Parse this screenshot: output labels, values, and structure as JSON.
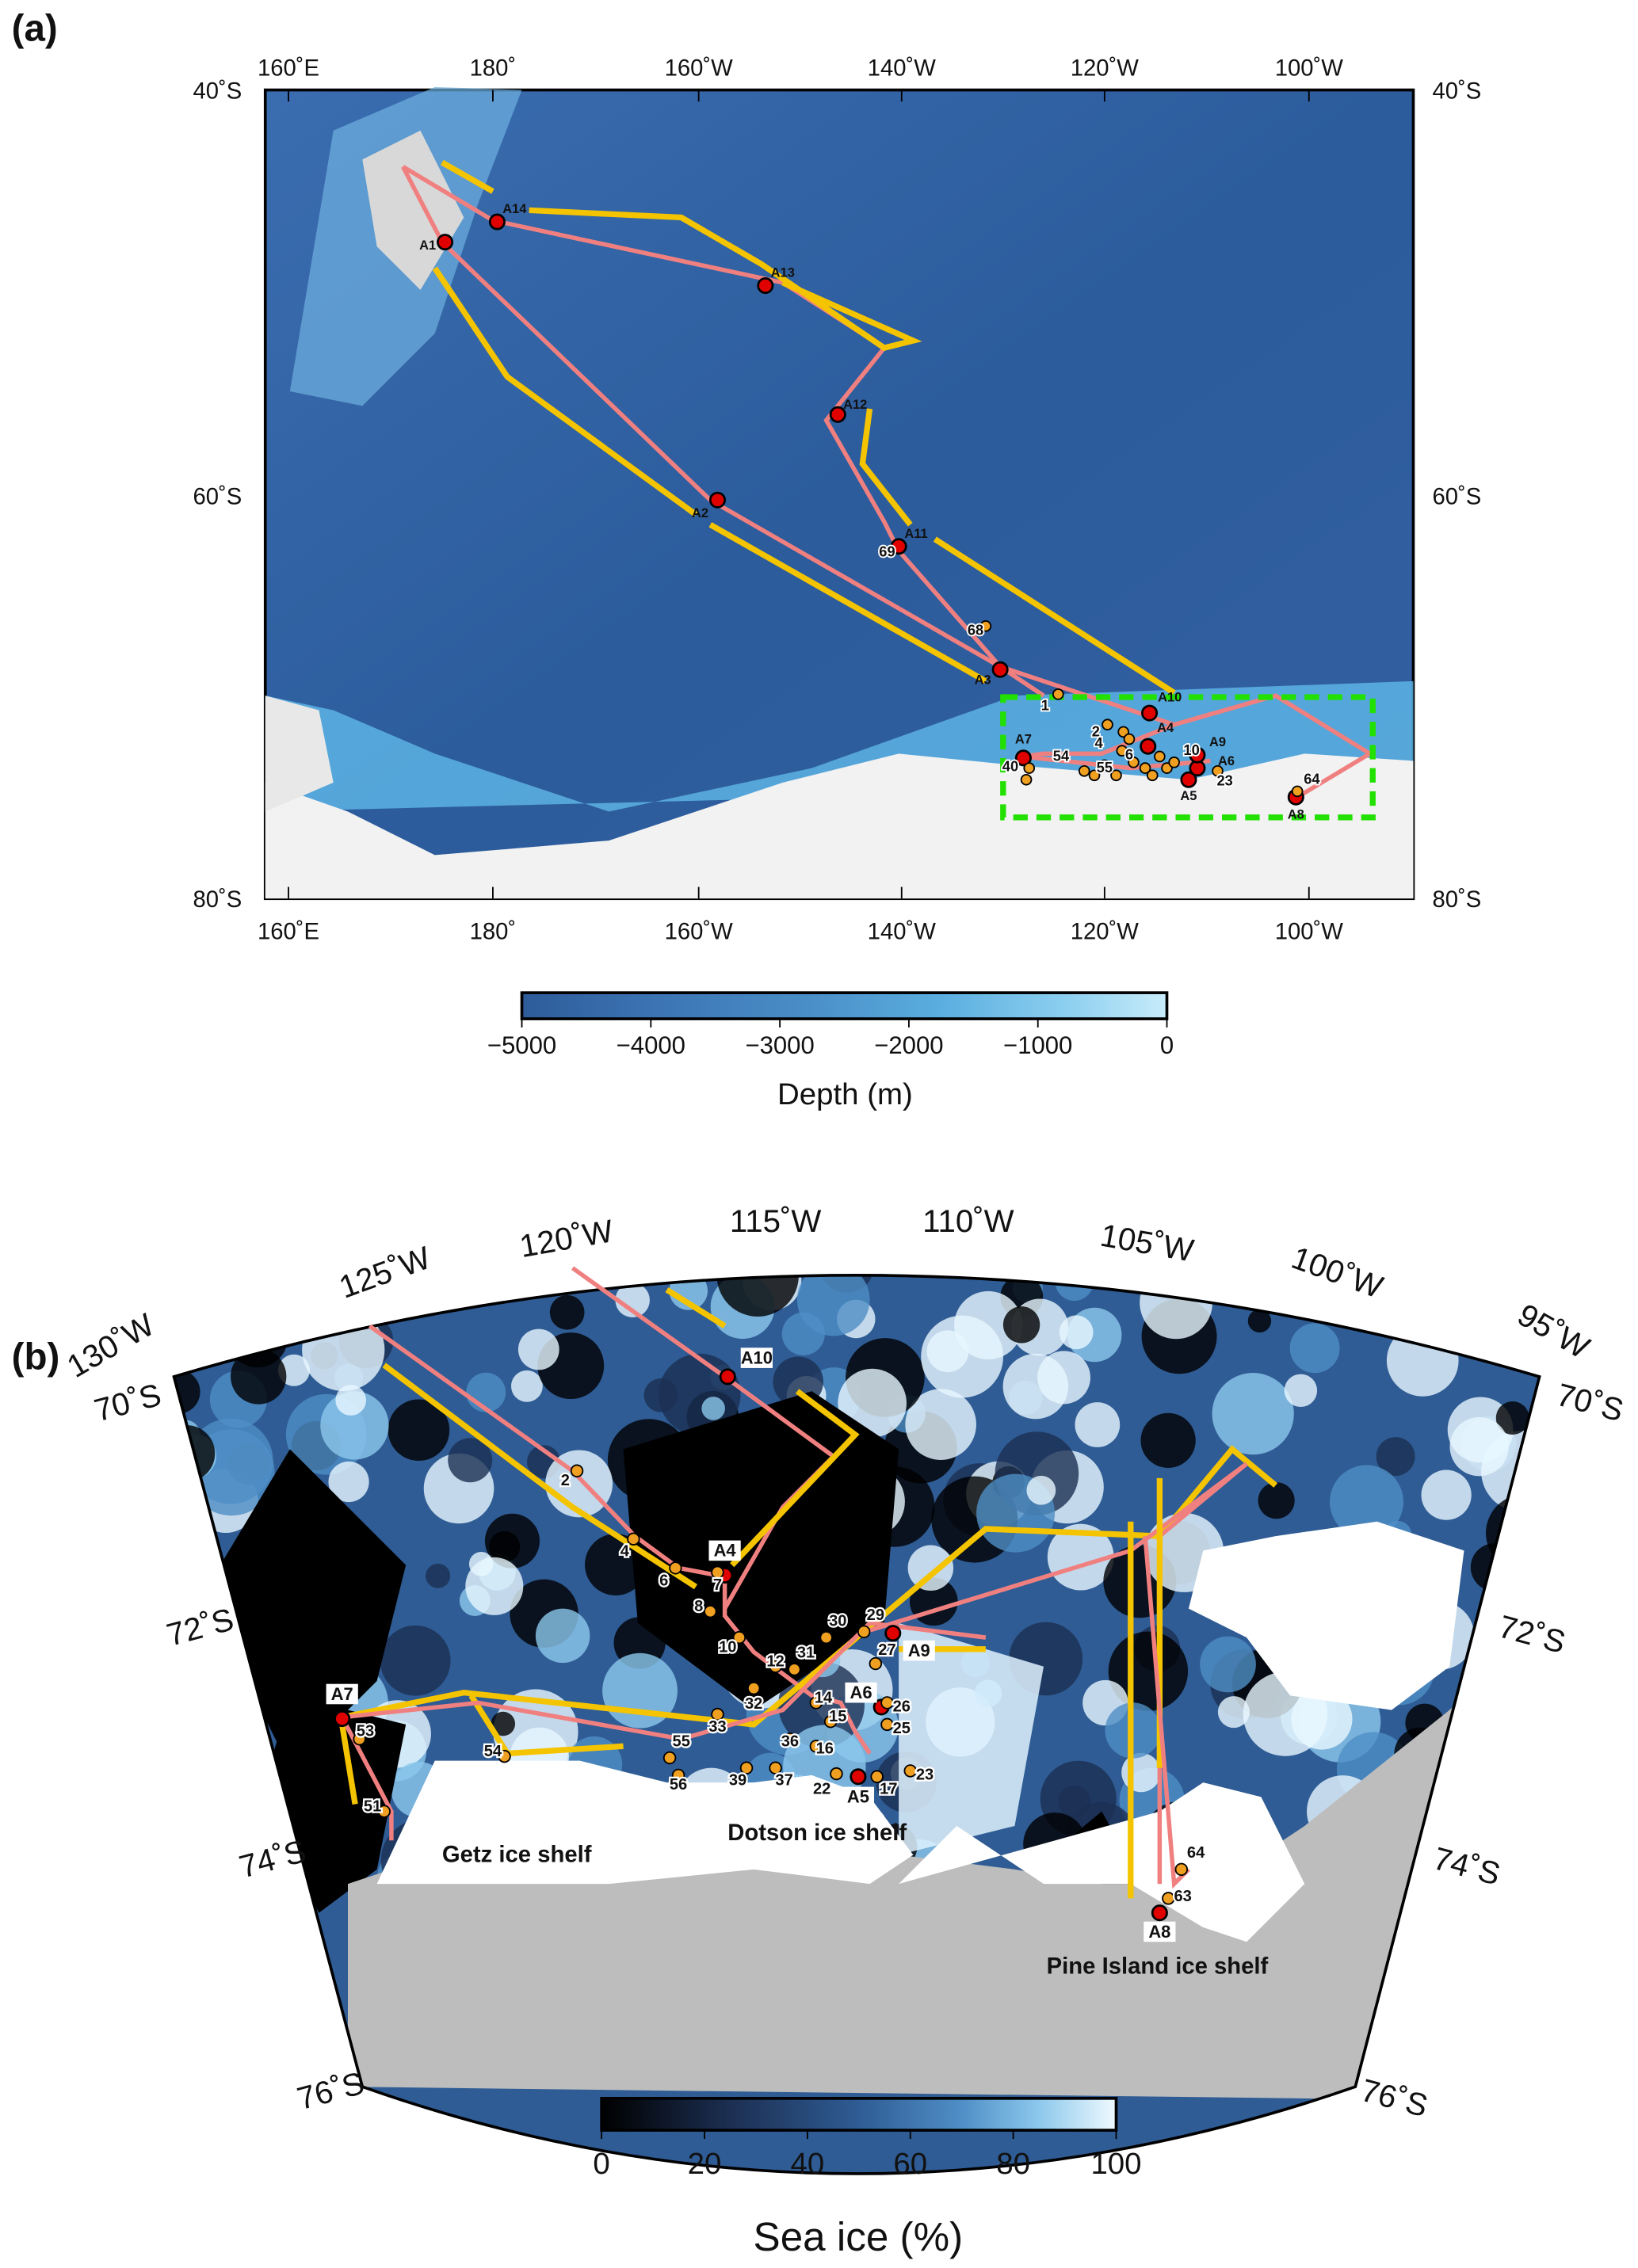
{
  "panel_a": {
    "label": "(a)",
    "top_lon_ticks": [
      "160˚E",
      "180˚",
      "160˚W",
      "140˚W",
      "120˚W",
      "100˚W"
    ],
    "bottom_lon_ticks": [
      "160˚E",
      "180˚",
      "160˚W",
      "140˚W",
      "120˚W",
      "100˚W"
    ],
    "lat_ticks": [
      "40˚S",
      "60˚S",
      "80˚S"
    ],
    "stations_major": [
      "A1",
      "A2",
      "A3",
      "A4",
      "A5",
      "A6",
      "A7",
      "A8",
      "A9",
      "A10",
      "A11",
      "A12",
      "A13",
      "A14"
    ],
    "stations_minor": [
      "1",
      "2",
      "4",
      "6",
      "10",
      "23",
      "40",
      "54",
      "55",
      "64",
      "68",
      "69"
    ],
    "colorbar": {
      "title": "Depth (m)",
      "ticks": [
        "−5000",
        "−4000",
        "−3000",
        "−2000",
        "−1000",
        "0"
      ],
      "colors": [
        "#2e5c9a",
        "#3b73b3",
        "#4a8fc8",
        "#5aaee0",
        "#8ed0f0",
        "#c8ecfa"
      ]
    },
    "colors": {
      "ocean": "#2d5f9f",
      "track": "#f08080",
      "arrow": "#f5c400",
      "highlight_box": "#22e000",
      "major_station": "#e00000",
      "minor_station": "#f0a020"
    }
  },
  "panel_b": {
    "label": "(b)",
    "lon_ticks": [
      "130˚W",
      "125˚W",
      "120˚W",
      "115˚W",
      "110˚W",
      "105˚W",
      "100˚W",
      "95˚W"
    ],
    "lat_ticks_left": [
      "70˚S",
      "72˚S",
      "74˚S",
      "76˚S"
    ],
    "lat_ticks_right": [
      "70˚S",
      "72˚S",
      "74˚S",
      "76˚S"
    ],
    "stations_major": [
      "A10",
      "A4",
      "A9",
      "A7",
      "A6",
      "A5",
      "A8"
    ],
    "stations_minor": [
      "2",
      "4",
      "6",
      "7",
      "8",
      "10",
      "12",
      "14",
      "15",
      "16",
      "17",
      "22",
      "23",
      "25",
      "26",
      "27",
      "29",
      "30",
      "31",
      "32",
      "33",
      "36",
      "37",
      "39",
      "51",
      "53",
      "54",
      "55",
      "56",
      "63",
      "64"
    ],
    "place_names": [
      "Getz ice shelf",
      "Dotson ice shelf",
      "Pine Island ice shelf"
    ],
    "colorbar": {
      "title": "Sea ice (%)",
      "ticks": [
        "0",
        "20",
        "40",
        "60",
        "80",
        "100"
      ],
      "colors": [
        "#000000",
        "#1c2f52",
        "#2f5c94",
        "#4f8fc6",
        "#8cc8ec",
        "#e8f8ff"
      ]
    },
    "colors": {
      "land": "#bdbdbd",
      "ice_shelf": "#ffffff",
      "track": "#f08080",
      "arrow": "#f5c400"
    }
  }
}
